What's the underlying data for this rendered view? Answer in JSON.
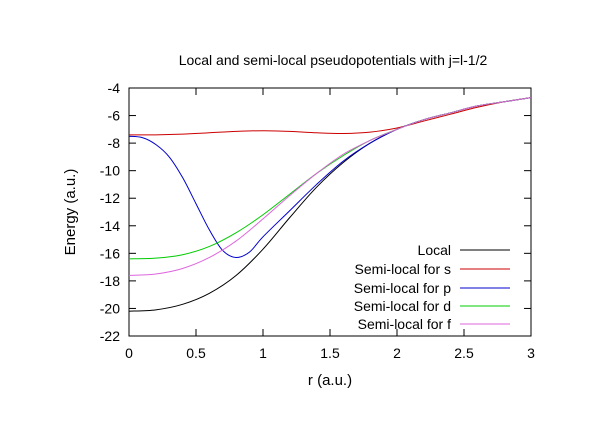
{
  "chart_data": {
    "type": "line",
    "title": "Local and semi-local pseudopotentials with j=l-1/2",
    "xlabel": "r (a.u.)",
    "ylabel": "Energy (a.u.)",
    "xlim": [
      0,
      3
    ],
    "ylim": [
      -22,
      -4
    ],
    "xticks": [
      "0",
      "0.5",
      "1",
      "1.5",
      "2",
      "2.5",
      "3"
    ],
    "yticks": [
      "-4",
      "-6",
      "-8",
      "-10",
      "-12",
      "-14",
      "-16",
      "-18",
      "-20",
      "-22"
    ],
    "grid": false,
    "legend_position": "bottom-right",
    "series": [
      {
        "name": "Local",
        "color": "#000000",
        "x": [
          0,
          0.2,
          0.4,
          0.6,
          0.8,
          1.0,
          1.2,
          1.4,
          1.6,
          1.8,
          2.0,
          2.2,
          2.4,
          2.6,
          2.8,
          3.0
        ],
        "y": [
          -20.2,
          -20.1,
          -19.7,
          -18.9,
          -17.6,
          -15.7,
          -13.4,
          -11.2,
          -9.4,
          -8.0,
          -7.0,
          -6.3,
          -5.8,
          -5.3,
          -5.0,
          -4.7
        ]
      },
      {
        "name": "Semi-local for s",
        "color": "#cc0000",
        "x": [
          0,
          0.2,
          0.4,
          0.6,
          0.8,
          1.0,
          1.2,
          1.4,
          1.6,
          1.8,
          2.0,
          2.2,
          2.4,
          2.6,
          2.8,
          3.0
        ],
        "y": [
          -7.4,
          -7.4,
          -7.35,
          -7.25,
          -7.15,
          -7.1,
          -7.15,
          -7.25,
          -7.3,
          -7.2,
          -6.9,
          -6.4,
          -5.9,
          -5.4,
          -5.0,
          -4.7
        ]
      },
      {
        "name": "Semi-local for p",
        "color": "#0000cc",
        "x": [
          0,
          0.1,
          0.2,
          0.3,
          0.4,
          0.5,
          0.6,
          0.7,
          0.8,
          0.9,
          1.0,
          1.2,
          1.4,
          1.6,
          1.8,
          2.0,
          2.2,
          2.4,
          2.6,
          2.8,
          3.0
        ],
        "y": [
          -7.5,
          -7.6,
          -8.1,
          -9.0,
          -10.5,
          -12.4,
          -14.3,
          -15.8,
          -16.3,
          -15.9,
          -14.8,
          -12.9,
          -11.0,
          -9.3,
          -8.0,
          -7.0,
          -6.3,
          -5.8,
          -5.3,
          -5.0,
          -4.7
        ]
      },
      {
        "name": "Semi-local for d",
        "color": "#00cc00",
        "x": [
          0,
          0.2,
          0.4,
          0.6,
          0.8,
          1.0,
          1.2,
          1.4,
          1.6,
          1.8,
          2.0,
          2.2,
          2.4,
          2.6,
          2.8,
          3.0
        ],
        "y": [
          -16.4,
          -16.35,
          -16.1,
          -15.5,
          -14.5,
          -13.2,
          -11.7,
          -10.2,
          -8.9,
          -7.8,
          -7.0,
          -6.3,
          -5.8,
          -5.3,
          -5.0,
          -4.7
        ]
      },
      {
        "name": "Semi-local for f",
        "color": "#dd66dd",
        "x": [
          0,
          0.2,
          0.4,
          0.6,
          0.8,
          1.0,
          1.2,
          1.4,
          1.6,
          1.8,
          2.0,
          2.2,
          2.4,
          2.6,
          2.8,
          3.0
        ],
        "y": [
          -17.6,
          -17.5,
          -17.1,
          -16.3,
          -15.1,
          -13.5,
          -11.8,
          -10.2,
          -8.8,
          -7.8,
          -7.0,
          -6.3,
          -5.8,
          -5.3,
          -5.0,
          -4.7
        ]
      }
    ]
  }
}
